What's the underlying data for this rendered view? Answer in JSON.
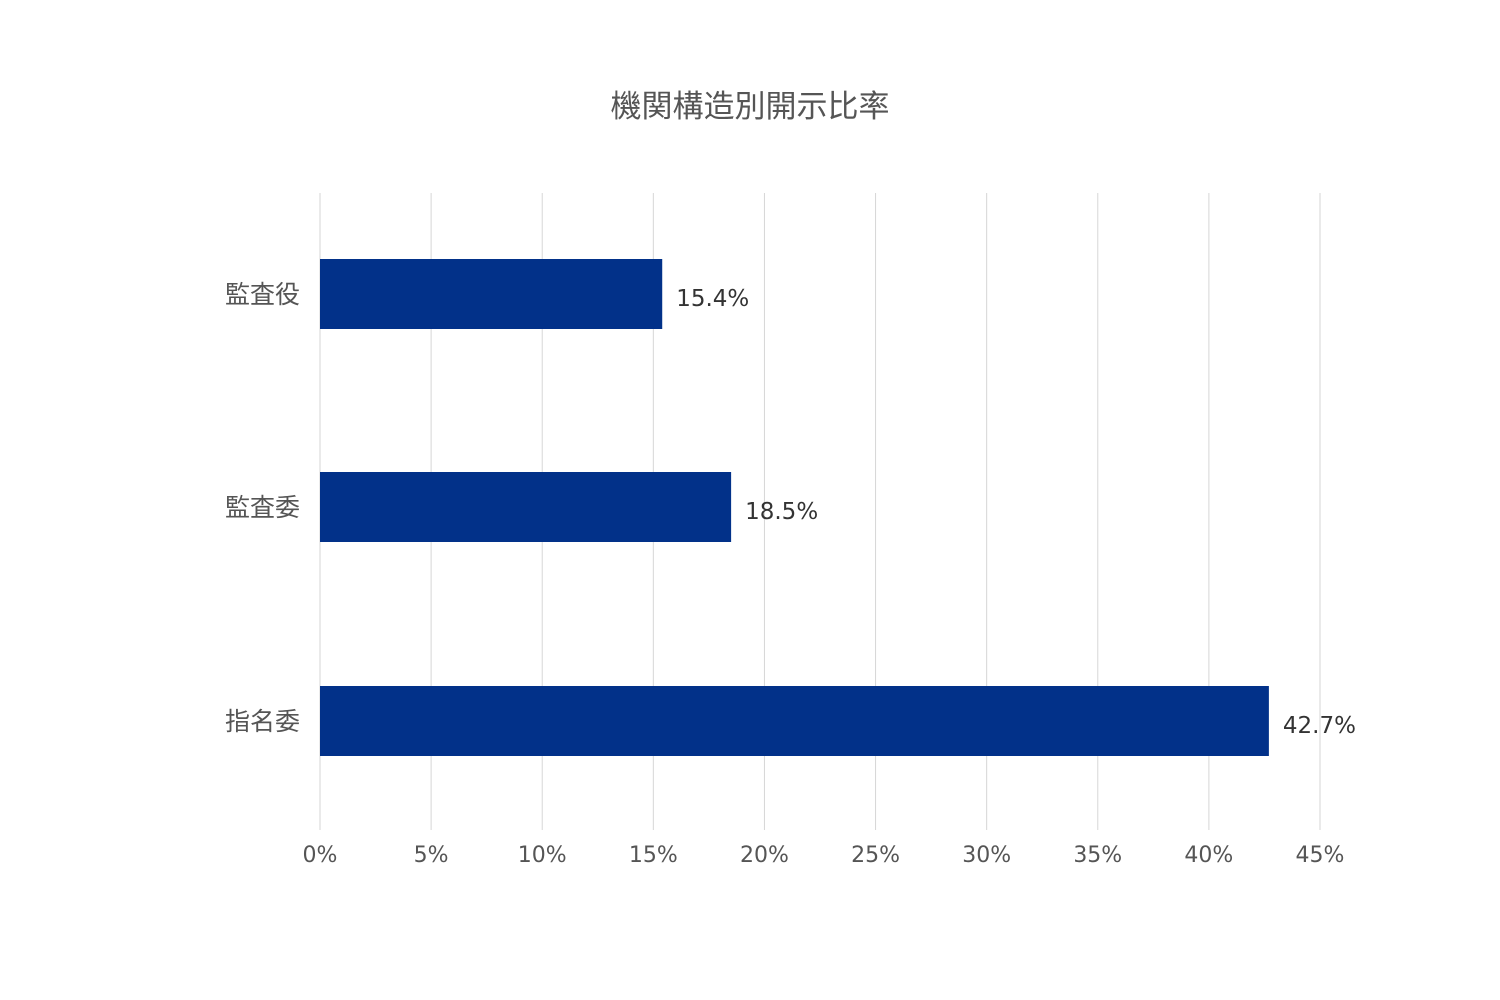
{
  "chart_data": {
    "type": "bar",
    "orientation": "horizontal",
    "title": "機関構造別開示比率",
    "xlabel": "",
    "ylabel": "",
    "categories": [
      "監査役",
      "監査委",
      "指名委"
    ],
    "values": [
      15.4,
      18.5,
      42.7
    ],
    "value_labels": [
      "15.4%",
      "18.5%",
      "42.7%"
    ],
    "xlim": [
      0,
      45
    ],
    "x_ticks": [
      0,
      5,
      10,
      15,
      20,
      25,
      30,
      35,
      40,
      45
    ],
    "x_tick_labels": [
      "0%",
      "5%",
      "10%",
      "15%",
      "20%",
      "25%",
      "30%",
      "35%",
      "40%",
      "45%"
    ],
    "grid": true,
    "legend": "none",
    "bar_color": "#023189"
  }
}
